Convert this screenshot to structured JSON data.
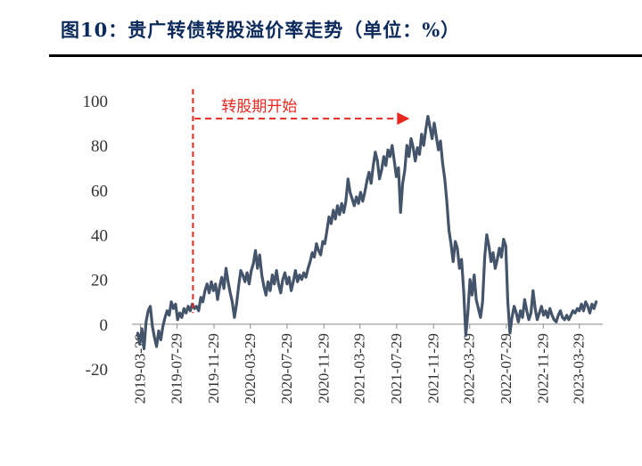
{
  "title": "图10：贵广转债转股溢价率走势（单位：%）",
  "chart_data": {
    "type": "line",
    "title": "图10：贵广转债转股溢价率走势（单位：%）",
    "unit": "%",
    "ylim": [
      -20,
      100
    ],
    "yticks": [
      -20,
      0,
      20,
      40,
      60,
      80,
      100
    ],
    "xlim": [
      "2019-03-01",
      "2023-06-15"
    ],
    "xticks": [
      "2019-03-29",
      "2019-07-29",
      "2019-11-29",
      "2020-03-29",
      "2020-07-29",
      "2020-11-29",
      "2021-03-29",
      "2021-07-29",
      "2021-11-29",
      "2022-03-29",
      "2022-07-29",
      "2022-11-29",
      "2023-03-29"
    ],
    "annotation": {
      "text": "转股期开始",
      "date": "2019-09-20",
      "arrow_from": "2019-09-25",
      "arrow_to": "2021-09-10",
      "y": 92
    },
    "series": [
      {
        "name": "转股溢价率",
        "color": "#44546a",
        "points": [
          [
            "2019-03-20",
            -4
          ],
          [
            "2019-03-27",
            -9
          ],
          [
            "2019-04-03",
            -2
          ],
          [
            "2019-04-10",
            -11
          ],
          [
            "2019-04-17",
            1
          ],
          [
            "2019-04-24",
            6
          ],
          [
            "2019-05-01",
            8
          ],
          [
            "2019-05-08",
            -1
          ],
          [
            "2019-05-15",
            -6
          ],
          [
            "2019-05-22",
            -10
          ],
          [
            "2019-05-29",
            -3
          ],
          [
            "2019-06-05",
            -7
          ],
          [
            "2019-06-12",
            -1
          ],
          [
            "2019-06-19",
            3
          ],
          [
            "2019-06-26",
            6
          ],
          [
            "2019-07-03",
            4
          ],
          [
            "2019-07-10",
            10
          ],
          [
            "2019-07-17",
            7
          ],
          [
            "2019-07-24",
            9
          ],
          [
            "2019-07-31",
            2
          ],
          [
            "2019-08-07",
            5
          ],
          [
            "2019-08-14",
            3
          ],
          [
            "2019-08-21",
            7
          ],
          [
            "2019-08-28",
            5
          ],
          [
            "2019-09-04",
            8
          ],
          [
            "2019-09-11",
            6
          ],
          [
            "2019-09-18",
            9
          ],
          [
            "2019-09-25",
            7
          ],
          [
            "2019-10-02",
            8
          ],
          [
            "2019-10-09",
            6
          ],
          [
            "2019-10-16",
            12
          ],
          [
            "2019-10-23",
            10
          ],
          [
            "2019-10-30",
            15
          ],
          [
            "2019-11-06",
            18
          ],
          [
            "2019-11-13",
            14
          ],
          [
            "2019-11-20",
            19
          ],
          [
            "2019-11-27",
            15
          ],
          [
            "2019-12-04",
            18
          ],
          [
            "2019-12-11",
            11
          ],
          [
            "2019-12-18",
            17
          ],
          [
            "2019-12-25",
            21
          ],
          [
            "2020-01-01",
            16
          ],
          [
            "2020-01-08",
            25
          ],
          [
            "2020-01-15",
            19
          ],
          [
            "2020-01-22",
            14
          ],
          [
            "2020-01-29",
            10
          ],
          [
            "2020-02-05",
            3
          ],
          [
            "2020-02-12",
            9
          ],
          [
            "2020-02-19",
            17
          ],
          [
            "2020-02-26",
            24
          ],
          [
            "2020-03-04",
            22
          ],
          [
            "2020-03-11",
            19
          ],
          [
            "2020-03-18",
            23
          ],
          [
            "2020-03-25",
            18
          ],
          [
            "2020-04-01",
            24
          ],
          [
            "2020-04-08",
            27
          ],
          [
            "2020-04-15",
            33
          ],
          [
            "2020-04-22",
            25
          ],
          [
            "2020-04-29",
            31
          ],
          [
            "2020-05-06",
            22
          ],
          [
            "2020-05-13",
            17
          ],
          [
            "2020-05-20",
            13
          ],
          [
            "2020-05-27",
            19
          ],
          [
            "2020-06-03",
            15
          ],
          [
            "2020-06-10",
            22
          ],
          [
            "2020-06-17",
            18
          ],
          [
            "2020-06-24",
            24
          ],
          [
            "2020-07-01",
            18
          ],
          [
            "2020-07-08",
            14
          ],
          [
            "2020-07-15",
            20
          ],
          [
            "2020-07-22",
            23
          ],
          [
            "2020-07-29",
            18
          ],
          [
            "2020-08-05",
            21
          ],
          [
            "2020-08-12",
            15
          ],
          [
            "2020-08-19",
            19
          ],
          [
            "2020-08-26",
            24
          ],
          [
            "2020-09-02",
            19
          ],
          [
            "2020-09-09",
            22
          ],
          [
            "2020-09-16",
            20
          ],
          [
            "2020-09-23",
            23
          ],
          [
            "2020-09-30",
            21
          ],
          [
            "2020-10-07",
            25
          ],
          [
            "2020-10-14",
            28
          ],
          [
            "2020-10-21",
            32
          ],
          [
            "2020-10-28",
            30
          ],
          [
            "2020-11-04",
            36
          ],
          [
            "2020-11-11",
            33
          ],
          [
            "2020-11-18",
            31
          ],
          [
            "2020-11-25",
            37
          ],
          [
            "2020-12-02",
            36
          ],
          [
            "2020-12-09",
            42
          ],
          [
            "2020-12-16",
            48
          ],
          [
            "2020-12-23",
            45
          ],
          [
            "2020-12-30",
            51
          ],
          [
            "2021-01-06",
            47
          ],
          [
            "2021-01-13",
            53
          ],
          [
            "2021-01-20",
            49
          ],
          [
            "2021-01-27",
            54
          ],
          [
            "2021-02-03",
            50
          ],
          [
            "2021-02-10",
            55
          ],
          [
            "2021-02-17",
            65
          ],
          [
            "2021-02-24",
            59
          ],
          [
            "2021-03-03",
            56
          ],
          [
            "2021-03-10",
            53
          ],
          [
            "2021-03-17",
            57
          ],
          [
            "2021-03-24",
            54
          ],
          [
            "2021-03-31",
            59
          ],
          [
            "2021-04-07",
            55
          ],
          [
            "2021-04-14",
            59
          ],
          [
            "2021-04-21",
            64
          ],
          [
            "2021-04-28",
            68
          ],
          [
            "2021-05-05",
            63
          ],
          [
            "2021-05-12",
            71
          ],
          [
            "2021-05-19",
            77
          ],
          [
            "2021-05-26",
            73
          ],
          [
            "2021-06-02",
            65
          ],
          [
            "2021-06-09",
            69
          ],
          [
            "2021-06-16",
            75
          ],
          [
            "2021-06-23",
            71
          ],
          [
            "2021-06-30",
            78
          ],
          [
            "2021-07-07",
            75
          ],
          [
            "2021-07-14",
            80
          ],
          [
            "2021-07-21",
            73
          ],
          [
            "2021-07-28",
            66
          ],
          [
            "2021-08-04",
            70
          ],
          [
            "2021-08-11",
            50
          ],
          [
            "2021-08-18",
            63
          ],
          [
            "2021-08-25",
            69
          ],
          [
            "2021-09-01",
            80
          ],
          [
            "2021-09-08",
            75
          ],
          [
            "2021-09-15",
            83
          ],
          [
            "2021-09-22",
            79
          ],
          [
            "2021-09-29",
            73
          ],
          [
            "2021-10-06",
            79
          ],
          [
            "2021-10-13",
            76
          ],
          [
            "2021-10-20",
            85
          ],
          [
            "2021-10-27",
            80
          ],
          [
            "2021-11-03",
            87
          ],
          [
            "2021-11-10",
            93
          ],
          [
            "2021-11-17",
            88
          ],
          [
            "2021-11-24",
            83
          ],
          [
            "2021-12-01",
            90
          ],
          [
            "2021-12-08",
            84
          ],
          [
            "2021-12-15",
            78
          ],
          [
            "2021-12-22",
            82
          ],
          [
            "2021-12-29",
            72
          ],
          [
            "2022-01-05",
            65
          ],
          [
            "2022-01-12",
            55
          ],
          [
            "2022-01-19",
            42
          ],
          [
            "2022-01-26",
            36
          ],
          [
            "2022-02-02",
            28
          ],
          [
            "2022-02-09",
            37
          ],
          [
            "2022-02-16",
            34
          ],
          [
            "2022-02-23",
            25
          ],
          [
            "2022-03-02",
            29
          ],
          [
            "2022-03-09",
            15
          ],
          [
            "2022-03-16",
            -5
          ],
          [
            "2022-03-23",
            5
          ],
          [
            "2022-03-30",
            20
          ],
          [
            "2022-04-06",
            13
          ],
          [
            "2022-04-13",
            22
          ],
          [
            "2022-04-20",
            11
          ],
          [
            "2022-04-27",
            7
          ],
          [
            "2022-05-04",
            3
          ],
          [
            "2022-05-11",
            10
          ],
          [
            "2022-05-18",
            30
          ],
          [
            "2022-05-25",
            40
          ],
          [
            "2022-06-01",
            35
          ],
          [
            "2022-06-08",
            28
          ],
          [
            "2022-06-15",
            32
          ],
          [
            "2022-06-22",
            25
          ],
          [
            "2022-06-29",
            29
          ],
          [
            "2022-07-06",
            34
          ],
          [
            "2022-07-13",
            30
          ],
          [
            "2022-07-20",
            38
          ],
          [
            "2022-07-27",
            35
          ],
          [
            "2022-08-03",
            10
          ],
          [
            "2022-08-10",
            -4
          ],
          [
            "2022-08-17",
            3
          ],
          [
            "2022-08-24",
            8
          ],
          [
            "2022-08-31",
            5
          ],
          [
            "2022-09-07",
            1
          ],
          [
            "2022-09-14",
            6
          ],
          [
            "2022-09-21",
            3
          ],
          [
            "2022-09-28",
            11
          ],
          [
            "2022-10-05",
            6
          ],
          [
            "2022-10-12",
            2
          ],
          [
            "2022-10-19",
            5
          ],
          [
            "2022-10-26",
            15
          ],
          [
            "2022-11-02",
            7
          ],
          [
            "2022-11-09",
            2
          ],
          [
            "2022-11-16",
            5
          ],
          [
            "2022-11-23",
            8
          ],
          [
            "2022-11-30",
            4
          ],
          [
            "2022-12-07",
            6
          ],
          [
            "2022-12-14",
            3
          ],
          [
            "2022-12-21",
            7
          ],
          [
            "2022-12-28",
            4
          ],
          [
            "2023-01-04",
            2
          ],
          [
            "2023-01-11",
            1
          ],
          [
            "2023-01-18",
            4
          ],
          [
            "2023-01-25",
            6
          ],
          [
            "2023-02-01",
            3
          ],
          [
            "2023-02-08",
            2
          ],
          [
            "2023-02-15",
            4
          ],
          [
            "2023-02-22",
            2
          ],
          [
            "2023-03-01",
            4
          ],
          [
            "2023-03-08",
            6
          ],
          [
            "2023-03-15",
            5
          ],
          [
            "2023-03-22",
            7
          ],
          [
            "2023-03-29",
            6
          ],
          [
            "2023-04-05",
            9
          ],
          [
            "2023-04-12",
            6
          ],
          [
            "2023-04-19",
            10
          ],
          [
            "2023-04-26",
            8
          ],
          [
            "2023-05-03",
            5
          ],
          [
            "2023-05-10",
            9
          ],
          [
            "2023-05-17",
            7
          ],
          [
            "2023-05-24",
            10
          ]
        ]
      }
    ]
  }
}
